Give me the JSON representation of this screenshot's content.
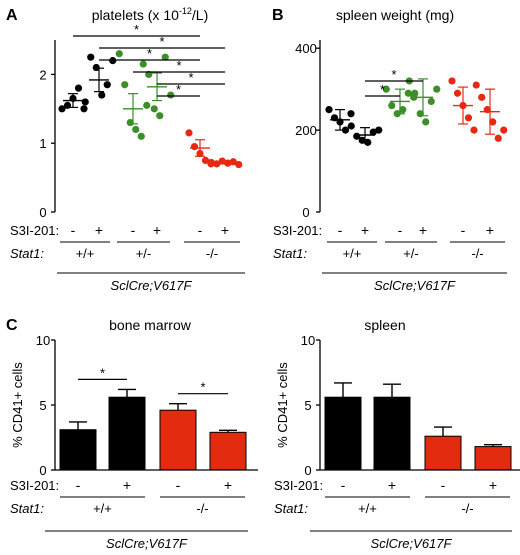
{
  "colors": {
    "black": "#000000",
    "green": "#3a8f27",
    "red": "#e8280f",
    "bar_red": "#e32b10"
  },
  "chart_data": [
    {
      "panel": "A",
      "type": "scatter",
      "title": "platelets (x 10",
      "title_sup": "-12",
      "title_end": "/L)",
      "ylim": [
        0,
        2.5
      ],
      "yticks": [
        0,
        1,
        2
      ],
      "x_label_row": "S3I-201:",
      "x_values": [
        "-",
        "+",
        "-",
        "+",
        "-",
        "+"
      ],
      "group_row_label": "Stat1:",
      "groups": [
        "+/+",
        "+/-",
        "-/-"
      ],
      "footer": "SclCre;V617F",
      "series": [
        {
          "group": "+/+",
          "treat": "-",
          "color": "black",
          "mean": 1.62,
          "sem": 0.1,
          "points": [
            1.5,
            1.55,
            1.65,
            1.8,
            1.5
          ]
        },
        {
          "group": "+/+",
          "treat": "+",
          "color": "black",
          "mean": 1.92,
          "sem": 0.17,
          "points": [
            1.6,
            2.25,
            2.1,
            1.7,
            1.85,
            2.2
          ]
        },
        {
          "group": "+/-",
          "treat": "-",
          "color": "green",
          "mean": 1.5,
          "sem": 0.22,
          "points": [
            2.3,
            1.85,
            1.3,
            1.2,
            1.1,
            1.55
          ]
        },
        {
          "group": "+/-",
          "treat": "+",
          "color": "green",
          "mean": 1.82,
          "sem": 0.2,
          "points": [
            2.15,
            2.0,
            1.5,
            1.4,
            2.25,
            1.7
          ]
        },
        {
          "group": "-/-",
          "treat": "-",
          "color": "red",
          "mean": 0.93,
          "sem": 0.12,
          "points": [
            1.15,
            0.95,
            0.85,
            0.75,
            0.7
          ]
        },
        {
          "group": "-/-",
          "treat": "+",
          "color": "red",
          "mean": 0.72,
          "sem": 0.02,
          "points": [
            0.72,
            0.7,
            0.74,
            0.71,
            0.73,
            0.69
          ]
        }
      ],
      "significance": [
        {
          "from": 0,
          "to": 4,
          "label": "*"
        },
        {
          "from": 1,
          "to": 5,
          "label": "*"
        },
        {
          "from": 1,
          "to": 4,
          "label": "*"
        },
        {
          "from": 2,
          "to": 5,
          "label": "*"
        },
        {
          "from": 3,
          "to": 5,
          "label": "*"
        },
        {
          "from": 3,
          "to": 4,
          "label": "*"
        }
      ]
    },
    {
      "panel": "B",
      "type": "scatter",
      "title": "spleen weight (mg)",
      "ylim": [
        0,
        420
      ],
      "yticks": [
        0,
        200,
        400
      ],
      "x_label_row": "S3I-201:",
      "x_values": [
        "-",
        "+",
        "-",
        "+",
        "-",
        "+"
      ],
      "group_row_label": "Stat1:",
      "groups": [
        "+/+",
        "+/-",
        "-/-"
      ],
      "footer": "SclCre;V617F",
      "series": [
        {
          "group": "+/+",
          "treat": "-",
          "color": "black",
          "mean": 225,
          "sem": 25,
          "points": [
            250,
            230,
            220,
            200,
            240
          ]
        },
        {
          "group": "+/+",
          "treat": "+",
          "color": "black",
          "mean": 188,
          "sem": 18,
          "points": [
            210,
            185,
            175,
            170,
            195,
            200
          ]
        },
        {
          "group": "+/-",
          "treat": "-",
          "color": "green",
          "mean": 270,
          "sem": 30,
          "points": [
            300,
            260,
            240,
            250,
            290,
            280
          ]
        },
        {
          "group": "+/-",
          "treat": "+",
          "color": "green",
          "mean": 280,
          "sem": 45,
          "points": [
            320,
            290,
            240,
            220,
            270,
            300
          ]
        },
        {
          "group": "-/-",
          "treat": "-",
          "color": "red",
          "mean": 260,
          "sem": 45,
          "points": [
            320,
            290,
            260,
            230,
            200
          ]
        },
        {
          "group": "-/-",
          "treat": "+",
          "color": "red",
          "mean": 245,
          "sem": 55,
          "points": [
            310,
            280,
            250,
            220,
            180,
            200
          ]
        }
      ],
      "significance": [
        {
          "from": 1,
          "to": 3,
          "label": "*"
        },
        {
          "from": 1,
          "to": 2,
          "label": "*"
        }
      ]
    },
    {
      "panel": "C",
      "type": "bar",
      "title": "bone marrow",
      "ylabel": "% CD41+ cells",
      "ylim": [
        0,
        10
      ],
      "yticks": [
        0,
        5,
        10
      ],
      "x_label_row": "S3I-201:",
      "x_values": [
        "-",
        "+",
        "-",
        "+"
      ],
      "group_row_label": "Stat1:",
      "groups": [
        "+/+",
        "-/-"
      ],
      "footer": "SclCre;V617F",
      "series": [
        {
          "treat": "-",
          "color": "black",
          "value": 3.1,
          "err": 0.6
        },
        {
          "treat": "+",
          "color": "black",
          "value": 5.6,
          "err": 0.6
        },
        {
          "treat": "-",
          "color": "red",
          "value": 4.6,
          "err": 0.5
        },
        {
          "treat": "+",
          "color": "red",
          "value": 2.9,
          "err": 0.15
        }
      ],
      "significance": [
        {
          "from": 0,
          "to": 1,
          "label": "*"
        },
        {
          "from": 2,
          "to": 3,
          "label": "*"
        }
      ]
    },
    {
      "panel": "",
      "type": "bar",
      "title": "spleen",
      "ylabel": "% CD41+ cells",
      "ylim": [
        0,
        10
      ],
      "yticks": [
        0,
        5,
        10
      ],
      "x_label_row": "S3I-201:",
      "x_values": [
        "-",
        "+",
        "-",
        "+"
      ],
      "group_row_label": "Stat1:",
      "groups": [
        "+/+",
        "-/-"
      ],
      "footer": "SclCre;V617F",
      "series": [
        {
          "treat": "-",
          "color": "black",
          "value": 5.6,
          "err": 1.1
        },
        {
          "treat": "+",
          "color": "black",
          "value": 5.6,
          "err": 1.0
        },
        {
          "treat": "-",
          "color": "red",
          "value": 2.6,
          "err": 0.7
        },
        {
          "treat": "+",
          "color": "red",
          "value": 1.8,
          "err": 0.15
        }
      ],
      "significance": []
    }
  ]
}
